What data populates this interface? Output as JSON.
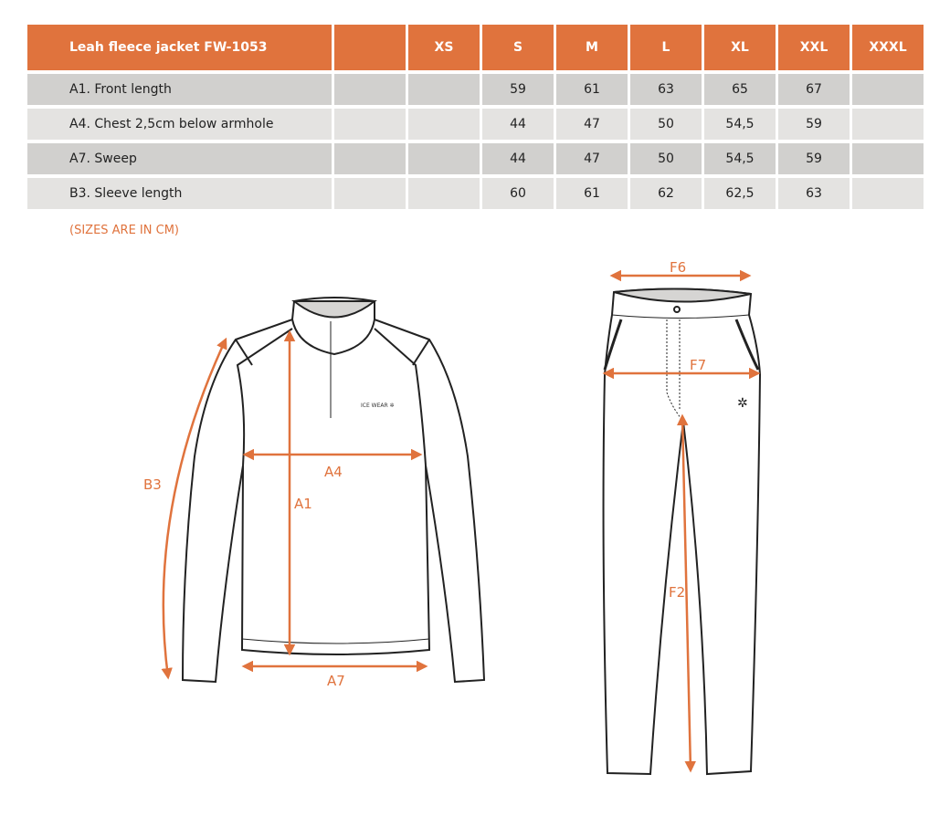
{
  "table": {
    "title": "Leah fleece jacket FW-1053",
    "sizes": [
      "",
      "XS",
      "S",
      "M",
      "L",
      "XL",
      "XXL",
      "XXXL"
    ],
    "rows": [
      {
        "label": "A1. Front length",
        "values": [
          "",
          "",
          "59",
          "61",
          "63",
          "65",
          "67",
          ""
        ]
      },
      {
        "label": "A4. Chest 2,5cm below armhole",
        "values": [
          "",
          "",
          "44",
          "47",
          "50",
          "54,5",
          "59",
          ""
        ]
      },
      {
        "label": "A7. Sweep",
        "values": [
          "",
          "",
          "44",
          "47",
          "50",
          "54,5",
          "59",
          ""
        ]
      },
      {
        "label": "B3. Sleeve length",
        "values": [
          "",
          "",
          "60",
          "61",
          "62",
          "62,5",
          "63",
          ""
        ]
      }
    ]
  },
  "note": "(SIZES ARE IN CM)",
  "diagram": {
    "jacket_labels": {
      "a1": "A1",
      "a4": "A4",
      "a7": "A7",
      "b3": "B3"
    },
    "pants_labels": {
      "f2": "F2",
      "f6": "F6",
      "f7": "F7"
    },
    "logo": "ICE WEAR",
    "accent": "#e0733d"
  }
}
